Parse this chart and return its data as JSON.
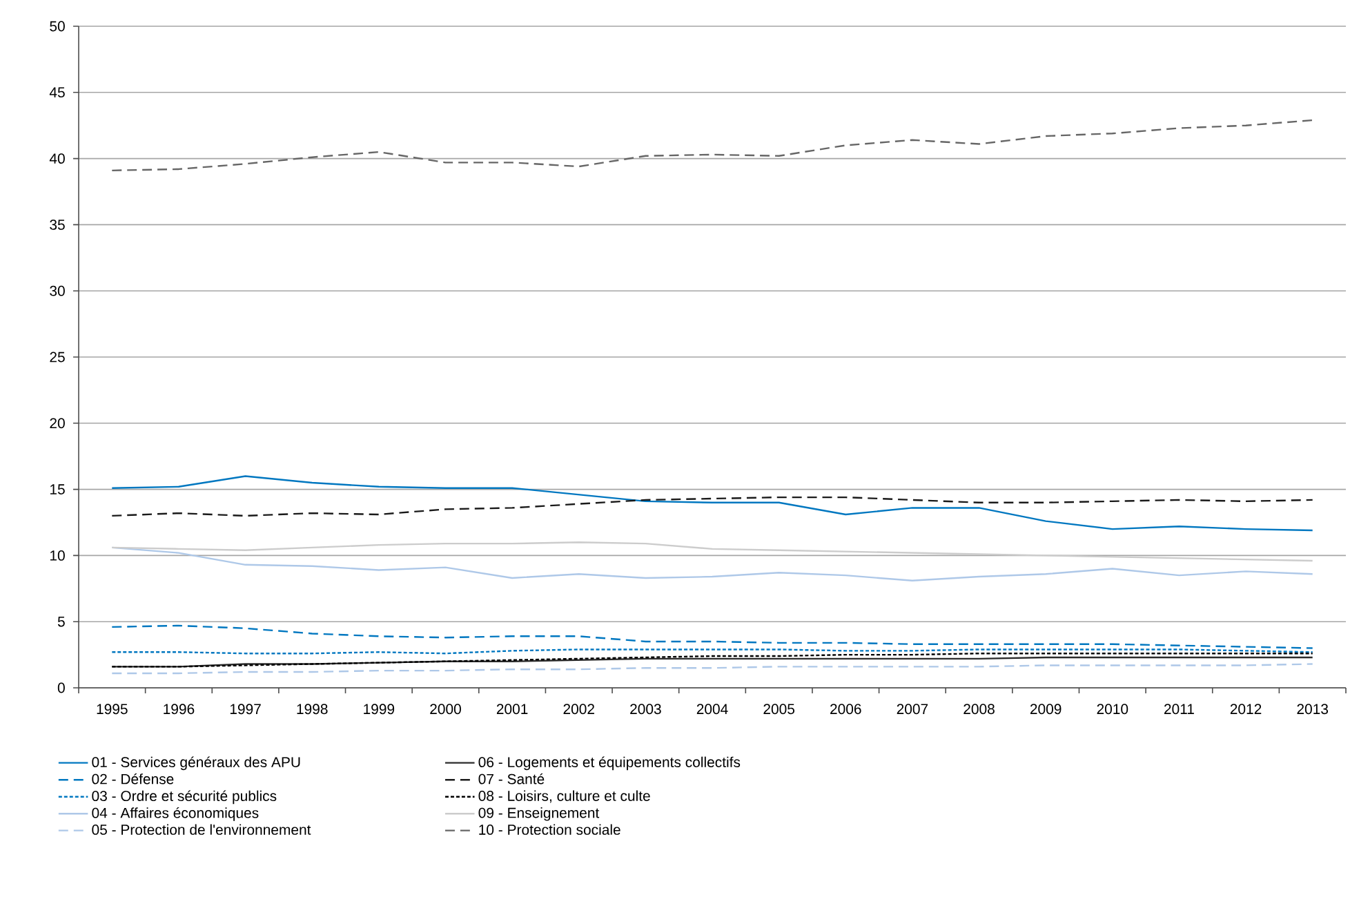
{
  "chart_data": {
    "type": "line",
    "categories": [
      "1995",
      "1996",
      "1997",
      "1998",
      "1999",
      "2000",
      "2001",
      "2002",
      "2003",
      "2004",
      "2005",
      "2006",
      "2007",
      "2008",
      "2009",
      "2010",
      "2011",
      "2012",
      "2013"
    ],
    "ylim": [
      0,
      50
    ],
    "yticks": [
      0,
      5,
      10,
      15,
      20,
      25,
      30,
      35,
      40,
      45,
      50
    ],
    "grid": "y",
    "legend": "bottom",
    "series": [
      {
        "name": "01 - Services généraux des APU",
        "color": "#0077c0",
        "line_style": "solid",
        "values": [
          15.1,
          15.2,
          16.0,
          15.5,
          15.2,
          15.1,
          15.1,
          14.6,
          14.1,
          14.0,
          14.0,
          13.1,
          13.6,
          13.6,
          12.6,
          12.0,
          12.2,
          12.0,
          11.9
        ]
      },
      {
        "name": "02 - Défense",
        "color": "#0077c0",
        "line_style": "dashed",
        "values": [
          4.6,
          4.7,
          4.5,
          4.1,
          3.9,
          3.8,
          3.9,
          3.9,
          3.5,
          3.5,
          3.4,
          3.4,
          3.3,
          3.3,
          3.3,
          3.3,
          3.2,
          3.1,
          3.0
        ]
      },
      {
        "name": "03 - Ordre et sécurité publics",
        "color": "#0077c0",
        "line_style": "dotted",
        "values": [
          2.7,
          2.7,
          2.6,
          2.6,
          2.7,
          2.6,
          2.8,
          2.9,
          2.9,
          2.9,
          2.9,
          2.8,
          2.8,
          2.9,
          2.9,
          2.9,
          2.9,
          2.8,
          2.7
        ]
      },
      {
        "name": "04 - Affaires économiques",
        "color": "#aec8e8",
        "line_style": "solid",
        "values": [
          10.6,
          10.2,
          9.3,
          9.2,
          8.9,
          9.1,
          8.3,
          8.6,
          8.3,
          8.4,
          8.7,
          8.5,
          8.1,
          8.4,
          8.6,
          9.0,
          8.5,
          8.8,
          8.6
        ]
      },
      {
        "name": "05 - Protection de l'environnement",
        "color": "#aec8e8",
        "line_style": "dashed",
        "values": [
          1.1,
          1.1,
          1.2,
          1.2,
          1.3,
          1.3,
          1.4,
          1.4,
          1.5,
          1.5,
          1.6,
          1.6,
          1.6,
          1.6,
          1.7,
          1.7,
          1.7,
          1.7,
          1.8
        ]
      },
      {
        "name": "06 - Logements et équipements collectifs",
        "color": "#2b2b2b",
        "line_style": "solid",
        "values": [
          1.6,
          1.6,
          1.8,
          1.8,
          1.9,
          2.0,
          2.0,
          2.1,
          2.2,
          2.2,
          2.2,
          2.2,
          2.2,
          2.2,
          2.3,
          2.3,
          2.3,
          2.3,
          2.3
        ]
      },
      {
        "name": "07 - Santé",
        "color": "#1a1a1a",
        "line_style": "dashed",
        "values": [
          13.0,
          13.2,
          13.0,
          13.2,
          13.1,
          13.5,
          13.6,
          13.9,
          14.2,
          14.3,
          14.4,
          14.4,
          14.2,
          14.0,
          14.0,
          14.1,
          14.2,
          14.1,
          14.2
        ]
      },
      {
        "name": "08 - Loisirs, culture et culte",
        "color": "#000000",
        "line_style": "dotted",
        "values": [
          1.6,
          1.6,
          1.7,
          1.8,
          1.9,
          2.0,
          2.1,
          2.2,
          2.3,
          2.4,
          2.4,
          2.5,
          2.5,
          2.6,
          2.6,
          2.6,
          2.6,
          2.6,
          2.6
        ]
      },
      {
        "name": "09 - Enseignement",
        "color": "#cccccc",
        "line_style": "solid",
        "values": [
          10.6,
          10.5,
          10.4,
          10.6,
          10.8,
          10.9,
          10.9,
          11.0,
          10.9,
          10.5,
          10.4,
          10.3,
          10.2,
          10.1,
          10.0,
          9.9,
          9.8,
          9.7,
          9.6
        ]
      },
      {
        "name": "10 - Protection sociale",
        "color": "#666666",
        "line_style": "dashed",
        "values": [
          39.1,
          39.2,
          39.6,
          40.1,
          40.5,
          39.7,
          39.7,
          39.4,
          40.2,
          40.3,
          40.2,
          41.0,
          41.4,
          41.1,
          41.7,
          41.9,
          42.3,
          42.5,
          42.9
        ]
      }
    ]
  }
}
